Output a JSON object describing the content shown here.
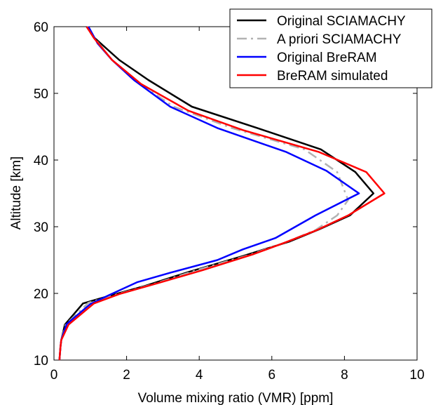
{
  "chart_data": {
    "type": "line",
    "xlabel": "Volume mixing ratio (VMR) [ppm]",
    "ylabel": "Altitude [km]",
    "xlim": [
      0,
      10
    ],
    "ylim": [
      10,
      60
    ],
    "xticks": [
      0,
      2,
      4,
      6,
      8,
      10
    ],
    "yticks": [
      10,
      20,
      30,
      40,
      50,
      60
    ],
    "grid": false,
    "legend_position": "top-right",
    "series": [
      {
        "name": "Original SCIAMACHY",
        "color": "#000000",
        "style": "solid",
        "points": [
          [
            0.15,
            10
          ],
          [
            0.18,
            12
          ],
          [
            0.2,
            13
          ],
          [
            0.3,
            15.3
          ],
          [
            0.8,
            18.5
          ],
          [
            1.5,
            19.6
          ],
          [
            2.5,
            21.1
          ],
          [
            3.7,
            23.2
          ],
          [
            5.2,
            25.6
          ],
          [
            6.5,
            27.8
          ],
          [
            7.3,
            29.6
          ],
          [
            8.15,
            31.7
          ],
          [
            8.8,
            35
          ],
          [
            8.3,
            38.2
          ],
          [
            7.35,
            41.6
          ],
          [
            5.6,
            44.8
          ],
          [
            3.8,
            48
          ],
          [
            2.6,
            52
          ],
          [
            1.8,
            55
          ],
          [
            1.1,
            58.4
          ],
          [
            0.9,
            60
          ]
        ]
      },
      {
        "name": "A priori SCIAMACHY",
        "color": "#b3b3b3",
        "style": "dashdot",
        "points": [
          [
            0.15,
            10
          ],
          [
            0.18,
            12
          ],
          [
            0.2,
            13
          ],
          [
            0.32,
            15.3
          ],
          [
            0.95,
            18.6
          ],
          [
            1.7,
            19.8
          ],
          [
            2.8,
            21.5
          ],
          [
            4.0,
            23.6
          ],
          [
            5.4,
            25.8
          ],
          [
            6.4,
            27.7
          ],
          [
            7.2,
            29.5
          ],
          [
            7.8,
            31.7
          ],
          [
            8.1,
            34
          ],
          [
            7.8,
            38.2
          ],
          [
            6.9,
            41.6
          ],
          [
            4.9,
            44.8
          ],
          [
            3.3,
            48
          ],
          [
            2.2,
            52
          ],
          [
            1.6,
            55
          ],
          [
            1.1,
            58.4
          ],
          [
            0.92,
            60
          ]
        ]
      },
      {
        "name": "Original BreRAM",
        "color": "#0000ff",
        "style": "solid",
        "points": [
          [
            0.15,
            10
          ],
          [
            0.18,
            12
          ],
          [
            0.2,
            13
          ],
          [
            0.35,
            15.4
          ],
          [
            1.0,
            18.4
          ],
          [
            1.5,
            19.7
          ],
          [
            2.3,
            21.7
          ],
          [
            3.2,
            23.1
          ],
          [
            4.5,
            25
          ],
          [
            5.2,
            26.6
          ],
          [
            6.1,
            28.3
          ],
          [
            7.2,
            31.7
          ],
          [
            8.4,
            35
          ],
          [
            7.5,
            38.4
          ],
          [
            6.4,
            41.2
          ],
          [
            4.5,
            44.8
          ],
          [
            3.2,
            48
          ],
          [
            2.2,
            52
          ],
          [
            1.6,
            55
          ],
          [
            1.2,
            57.5
          ],
          [
            0.95,
            60
          ]
        ]
      },
      {
        "name": "BreRAM simulated",
        "color": "#ff0000",
        "style": "solid",
        "points": [
          [
            0.15,
            10
          ],
          [
            0.18,
            12
          ],
          [
            0.2,
            13
          ],
          [
            0.4,
            15.3
          ],
          [
            1.1,
            18.5
          ],
          [
            1.8,
            19.9
          ],
          [
            2.9,
            21.6
          ],
          [
            4.1,
            23.5
          ],
          [
            5.5,
            25.9
          ],
          [
            6.3,
            27.5
          ],
          [
            7.2,
            29.4
          ],
          [
            8.1,
            31.7
          ],
          [
            9.1,
            35
          ],
          [
            8.6,
            38.2
          ],
          [
            7.3,
            41.2
          ],
          [
            5.2,
            44.5
          ],
          [
            3.7,
            47.4
          ],
          [
            2.4,
            51.4
          ],
          [
            1.6,
            55
          ],
          [
            1.1,
            58.3
          ],
          [
            0.9,
            60
          ]
        ]
      }
    ]
  }
}
